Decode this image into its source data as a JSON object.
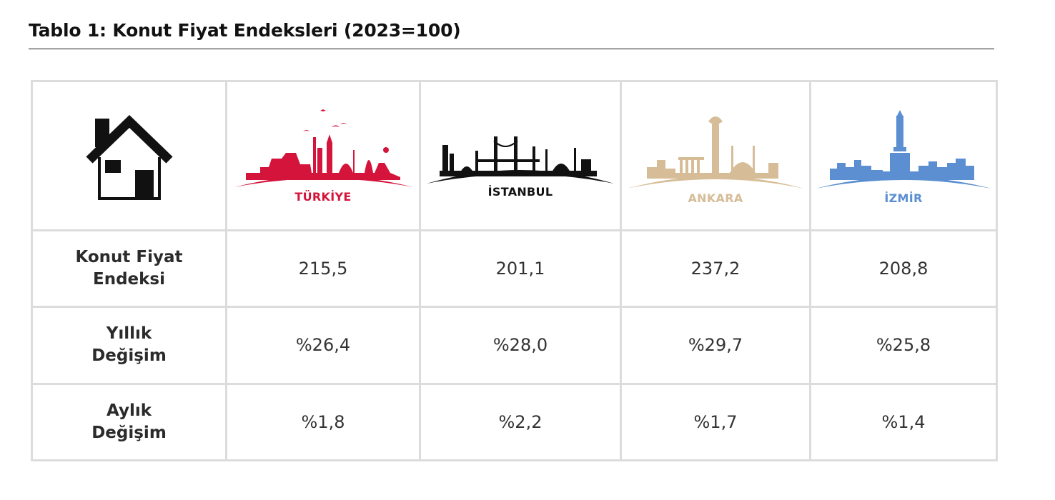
{
  "title": "Tablo 1: Konut Fiyat Endeksleri (2023=100)",
  "columns": [
    {
      "name": "TÜRKİYE",
      "color": "#d4143a",
      "icon": "turkiye-skyline-icon"
    },
    {
      "name": "İSTANBUL",
      "color": "#111111",
      "icon": "istanbul-skyline-icon"
    },
    {
      "name": "ANKARA",
      "color": "#d6bd98",
      "icon": "ankara-skyline-icon"
    },
    {
      "name": "İZMİR",
      "color": "#5b8fd1",
      "icon": "izmir-skyline-icon"
    }
  ],
  "header_icon": "house-icon",
  "rows": [
    {
      "label_line1": "Konut Fiyat",
      "label_line2": "Endeksi",
      "values": [
        "215,5",
        "201,1",
        "237,2",
        "208,8"
      ]
    },
    {
      "label_line1": "Yıllık",
      "label_line2": "Değişim",
      "values": [
        "%26,4",
        "%28,0",
        "%29,7",
        "%25,8"
      ]
    },
    {
      "label_line1": "Aylık",
      "label_line2": "Değişim",
      "values": [
        "%1,8",
        "%2,2",
        "%1,7",
        "%1,4"
      ]
    }
  ]
}
